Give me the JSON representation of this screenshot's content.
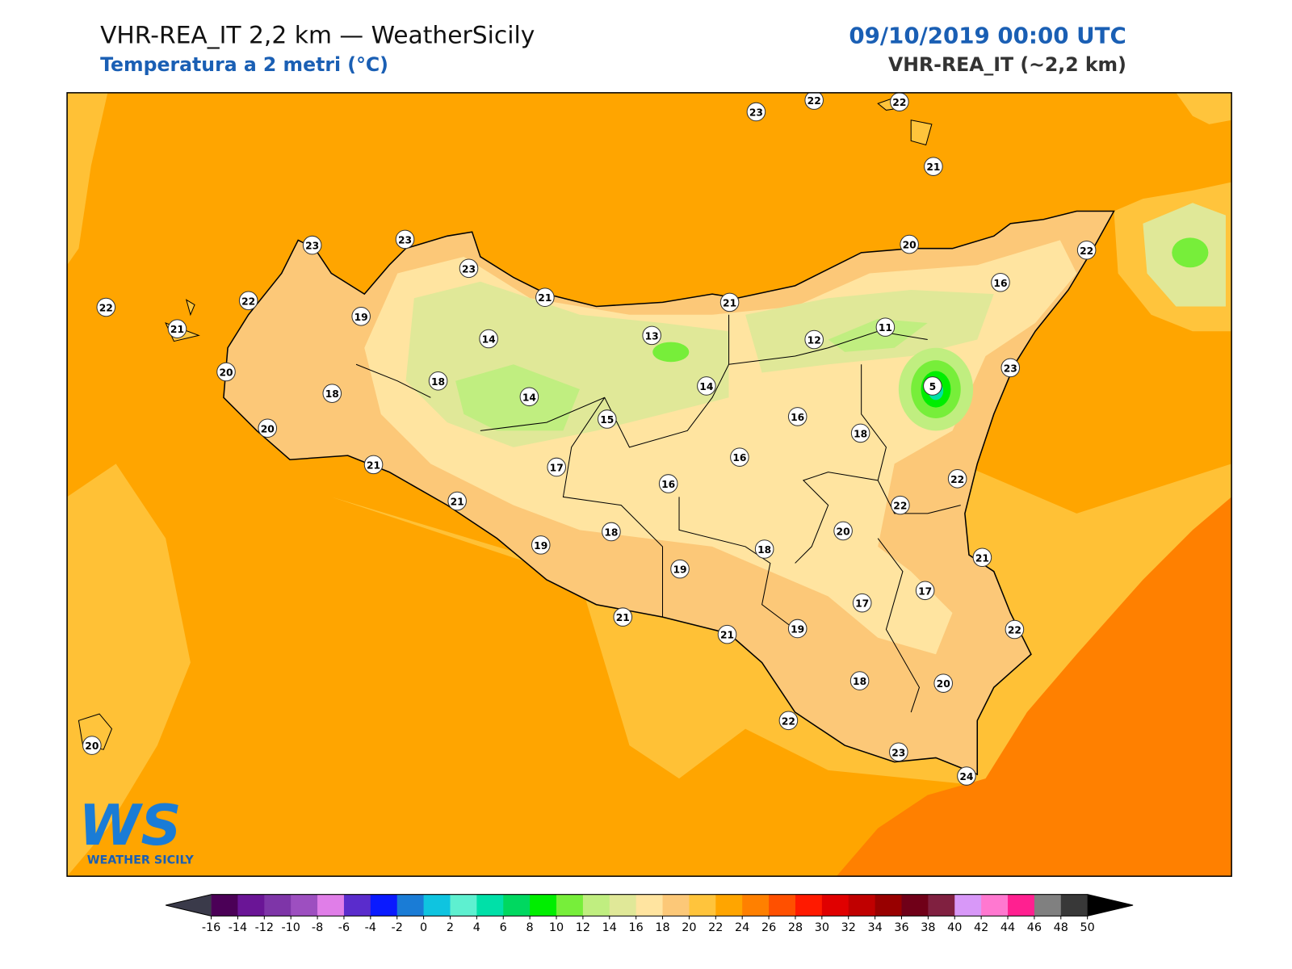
{
  "header": {
    "title": "VHR-REA_IT 2,2 km — WeatherSicily",
    "subtitle": "Temperatura a 2 metri (°C)",
    "datetime": "09/10/2019 00:00 UTC",
    "model": "VHR-REA_IT (~2,2 km)"
  },
  "logo": {
    "mark": "WS",
    "name": "WEATHER SICILY"
  },
  "stations": [
    23,
    22,
    22,
    21,
    23,
    23,
    23,
    20,
    22,
    22,
    22,
    19,
    21,
    21,
    16,
    21,
    14,
    13,
    12,
    11,
    20,
    18,
    18,
    14,
    5,
    23,
    14,
    15,
    16,
    18,
    20,
    21,
    17,
    16,
    16,
    22,
    21,
    22,
    18,
    20,
    19,
    18,
    21,
    19,
    17,
    17,
    21,
    21,
    19,
    22,
    18,
    20,
    22,
    23,
    24,
    20
  ],
  "colorbar": {
    "ticks": [
      -16,
      -14,
      -12,
      -10,
      -8,
      -6,
      -4,
      -2,
      0,
      2,
      4,
      6,
      8,
      10,
      12,
      14,
      16,
      18,
      20,
      22,
      24,
      26,
      28,
      30,
      32,
      34,
      36,
      38,
      40,
      42,
      44,
      46,
      48,
      50
    ],
    "colors": [
      "#4b0057",
      "#6a1596",
      "#7e35a8",
      "#9d4fc0",
      "#e07ee8",
      "#5a2ccc",
      "#0a1aff",
      "#1a7cd6",
      "#0fc4e0",
      "#5ef0d0",
      "#00e0a8",
      "#00d860",
      "#00ee00",
      "#77ee3a",
      "#c0ee80",
      "#e0e898",
      "#ffe4a0",
      "#fcc878",
      "#ffc43c",
      "#ffa500",
      "#ff8000",
      "#ff5000",
      "#ff1a00",
      "#e00000",
      "#c00000",
      "#980000",
      "#700018",
      "#802040",
      "#d898f8",
      "#ff78d0",
      "#ff2090",
      "#808080",
      "#383838"
    ],
    "under_color": "#3a3a4a",
    "over_color": "#000000"
  }
}
